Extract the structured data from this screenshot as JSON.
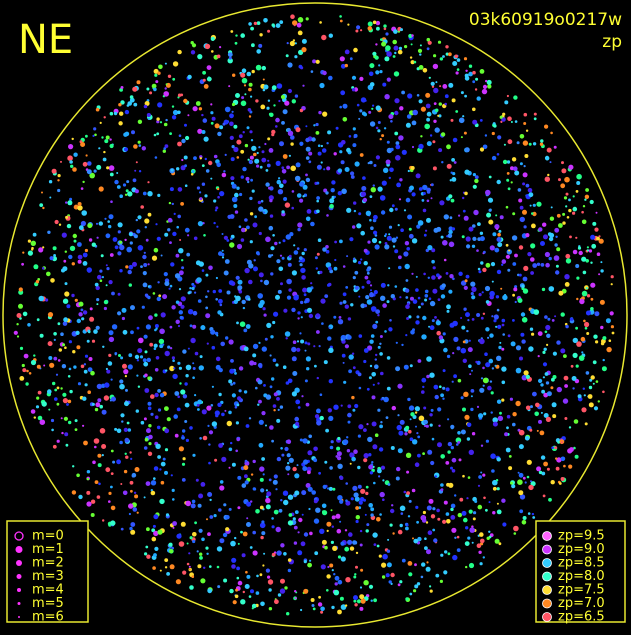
{
  "header": {
    "label": "NE",
    "image_id": "03k60919o0217w",
    "mode": "zp"
  },
  "magnitude_legend": [
    "m=0",
    "m=1",
    "m=2",
    "m=3",
    "m=4",
    "m=5",
    "m=6"
  ],
  "magnitude_color": "#ff33ff",
  "zp_legend": [
    {
      "label": "zp=9.5",
      "color": "#ff66ff"
    },
    {
      "label": "zp=9.0",
      "color": "#cc33ff"
    },
    {
      "label": "zp=8.5",
      "color": "#33ccff"
    },
    {
      "label": "zp=8.0",
      "color": "#33ffcc"
    },
    {
      "label": "zp=7.5",
      "color": "#ffdd33"
    },
    {
      "label": "zp=7.0",
      "color": "#ff8822"
    },
    {
      "label": "zp=6.5",
      "color": "#ff5566"
    }
  ]
}
